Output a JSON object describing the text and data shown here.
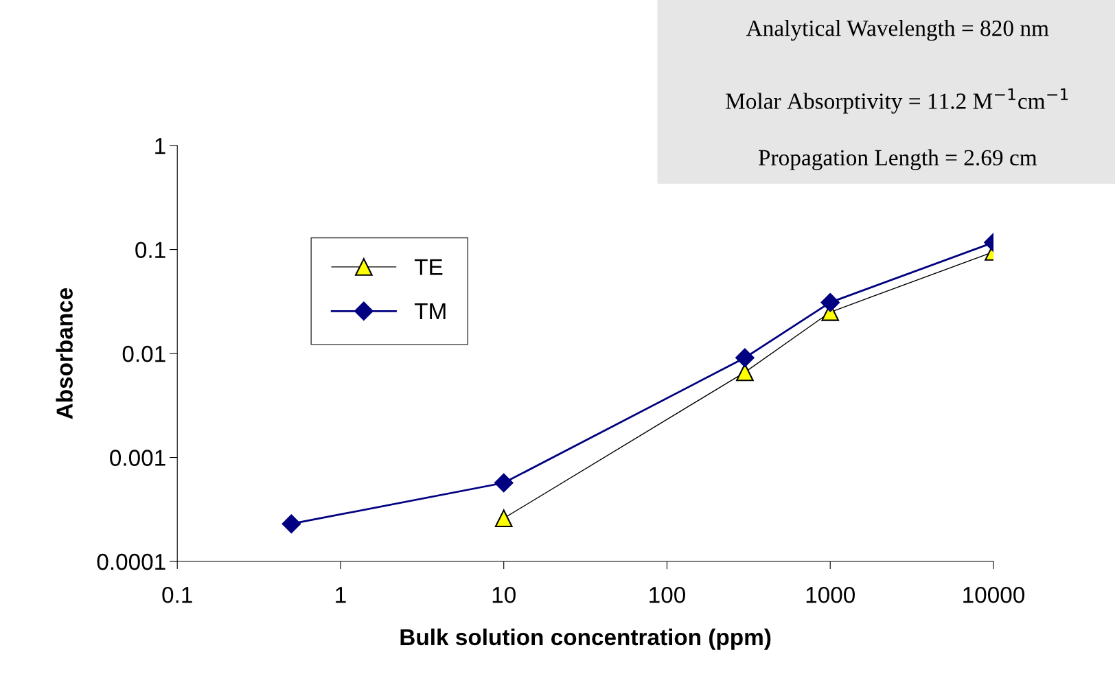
{
  "chart_data": {
    "type": "line",
    "xlabel": "Bulk solution concentration (ppm)",
    "ylabel": "Absorbance",
    "log": "xy",
    "xlim": [
      0.1,
      10000
    ],
    "ylim": [
      0.0001,
      1
    ],
    "xticks": [
      0.1,
      1,
      10,
      100,
      1000,
      10000
    ],
    "yticks": [
      0.0001,
      0.001,
      0.01,
      0.1,
      1
    ],
    "grid": false,
    "legend": "left",
    "annotations": [
      "Analytical Wavelength = 820 nm",
      "Molar Absorptivity = 11.2 M$^{−1}$cm$^{−1}$",
      "Propagation Length = 2.69 cm"
    ],
    "series": [
      {
        "name": "TE",
        "color": "#000000",
        "marker": "triangle",
        "x": [
          10,
          300,
          1000,
          10000
        ],
        "values": [
          0.00026,
          0.0066,
          0.025,
          0.095
        ]
      },
      {
        "name": "TM",
        "color": "#000080",
        "marker": "diamond",
        "x": [
          0.5,
          10,
          300,
          1000,
          10000
        ],
        "values": [
          0.00023,
          0.00057,
          0.0091,
          0.031,
          0.117
        ]
      }
    ]
  }
}
